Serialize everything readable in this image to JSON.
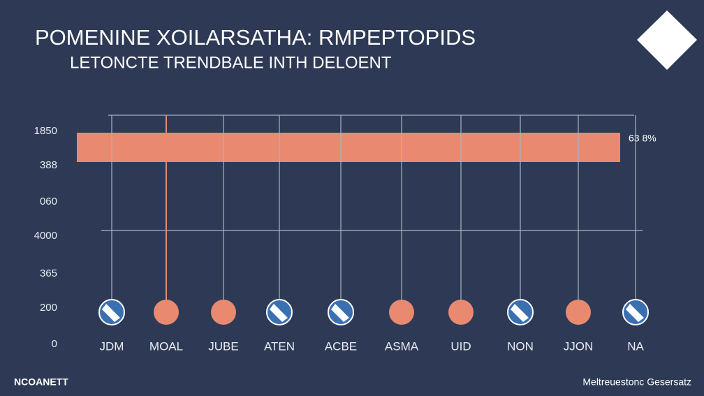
{
  "header": {
    "title": "POMENINE XOILARSATHA: RMPEPTOPIDS",
    "subtitle": "LETONCTE TRENDBALE INTH DELOENT"
  },
  "axis_labels": [
    "1850",
    "388",
    "060",
    "4000",
    "365",
    "200",
    "0"
  ],
  "bar_label": "63 8%",
  "categories": [
    "JDM",
    "MOAL",
    "JUBE",
    "ATEN",
    "ACBE",
    "ASMA",
    "UID",
    "NON",
    "JJON",
    "NA"
  ],
  "footer": {
    "left": "NCOANETT",
    "right": "Meltreuestonc Gesersatz"
  }
}
